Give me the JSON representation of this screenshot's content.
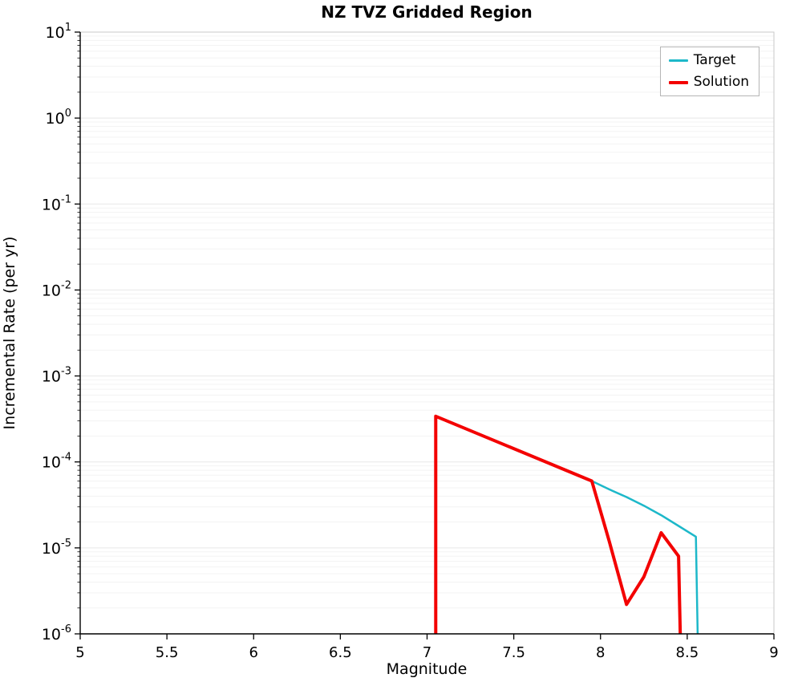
{
  "chart_data": {
    "type": "line",
    "title": "NZ TVZ Gridded Region",
    "xlabel": "Magnitude",
    "ylabel": "Incremental Rate (per yr)",
    "xlim": [
      5,
      9
    ],
    "xticks": [
      5,
      5.5,
      6,
      6.5,
      7,
      7.5,
      8,
      8.5,
      9
    ],
    "y_scale": "log",
    "y_exponent_range": [
      -6,
      1
    ],
    "grid": "horizontal-log-minor",
    "legend_position": "top-right",
    "colors": {
      "target": "#1db8c9",
      "solution": "#f30000",
      "grid_major": "#e8e8e8",
      "grid_minor": "#f3f3f3",
      "axis": "#000000",
      "frame": "#c9c9c9"
    },
    "series": [
      {
        "name": "Target",
        "color": "#1db8c9",
        "width": 2.5,
        "x": [
          7.05,
          7.05,
          7.95,
          8.05,
          8.15,
          8.25,
          8.35,
          8.45,
          8.55,
          8.56
        ],
        "y": [
          1e-06,
          0.00034,
          6e-05,
          4.8e-05,
          3.9e-05,
          3.1e-05,
          2.4e-05,
          1.8e-05,
          1.35e-05,
          1e-06
        ]
      },
      {
        "name": "Solution",
        "color": "#f30000",
        "width": 4,
        "x": [
          7.05,
          7.05,
          7.95,
          8.05,
          8.15,
          8.25,
          8.35,
          8.45,
          8.46
        ],
        "y": [
          1e-06,
          0.00034,
          6e-05,
          1.2e-05,
          2.2e-06,
          4.6e-06,
          1.5e-05,
          8e-06,
          1e-06
        ]
      }
    ]
  }
}
